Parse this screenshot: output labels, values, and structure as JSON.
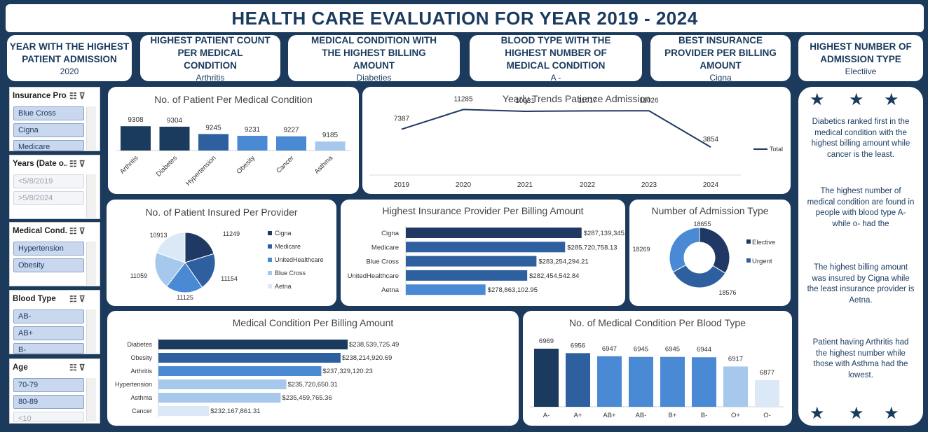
{
  "title": "HEALTH CARE EVALUATION FOR YEAR 2019 - 2024",
  "kpis": [
    {
      "heading": "YEAR WITH THE HIGHEST PATIENT ADMISSION",
      "value": "2020"
    },
    {
      "heading": "HIGHEST PATIENT COUNT PER MEDICAL CONDITION",
      "value": "Arthritis"
    },
    {
      "heading": "MEDICAL CONDITION WITH THE HIGHEST BILLING AMOUNT",
      "value": "Diabeties"
    },
    {
      "heading": "BLOOD TYPE WITH THE HIGHEST NUMBER OF MEDICAL CONDITION",
      "value": "A -"
    },
    {
      "heading": "BEST INSURANCE PROVIDER PER BILLING AMOUNT",
      "value": "Cigna"
    },
    {
      "heading": "HIGHEST NUMBER OF ADMISSION TYPE",
      "value": "Electiive"
    }
  ],
  "slicers": [
    {
      "title": "Insurance Pro...",
      "items": [
        "Blue Cross",
        "Cigna",
        "Medicare"
      ],
      "disabled": [
        false,
        false,
        false
      ]
    },
    {
      "title": "Years (Date o...",
      "items": [
        "<5/8/2019",
        ">5/8/2024"
      ],
      "disabled": [
        true,
        true
      ]
    },
    {
      "title": "Medical Cond...",
      "items": [
        "Hypertension",
        "Obesity"
      ],
      "disabled": [
        false,
        false
      ]
    },
    {
      "title": "Blood Type",
      "items": [
        "AB-",
        "AB+",
        "B-"
      ],
      "disabled": [
        false,
        false,
        false
      ]
    },
    {
      "title": "Age",
      "items": [
        "70-79",
        "80-89",
        "<10"
      ],
      "disabled": [
        false,
        false,
        true
      ]
    }
  ],
  "icons": {
    "multiselect": "multi-select-icon",
    "clear_filter": "clear-filter-icon",
    "star": "star-icon"
  },
  "colors": {
    "navy": "#1a3a5e",
    "dark_blue": "#203864",
    "mid_blue": "#2e5f9e",
    "blue": "#4a8ad4",
    "light_blue": "#a6c8ec",
    "pale_blue": "#dbe8f6",
    "background": "#1b3a5c"
  },
  "insights": [
    "Diabetics ranked first in the medical condition with the highest billing amount while cancer is the least.",
    "The highest number of medical condition are found in  people with blood type A- while o- had the",
    "The highest billing amount was insured by Cigna while the least insurance provider is Aetna.",
    "Patient having Arthritis had the highest number while those with Asthma had the lowest."
  ],
  "chart_data": [
    {
      "id": "patients_per_condition",
      "type": "bar",
      "title": "No. of Patient Per Medical Condition",
      "categories": [
        "Arthritis",
        "Diabetes",
        "Hypertension",
        "Obesity",
        "Cancer",
        "Asthma"
      ],
      "values": [
        9308,
        9304,
        9245,
        9231,
        9227,
        9185
      ],
      "value_labels": [
        "9308",
        "9304",
        "9245",
        "9231",
        "9227",
        "9185"
      ],
      "ylim": [
        9000,
        9360
      ]
    },
    {
      "id": "yearly_admission",
      "type": "line",
      "title": "Yearly Trends Patience Admission",
      "x": [
        "2019",
        "2020",
        "2021",
        "2022",
        "2023",
        "2024"
      ],
      "series": [
        {
          "name": "Total",
          "values": [
            7387,
            11285,
            10931,
            11017,
            11026,
            3854
          ]
        }
      ],
      "value_labels": [
        "7387",
        "11285",
        "10931",
        "11017",
        "11026",
        "3854"
      ],
      "legend": "right"
    },
    {
      "id": "insured_per_provider",
      "type": "pie",
      "title": "No. of Patient Insured Per Provider",
      "categories": [
        "Cigna",
        "Medicare",
        "UnitedHealthcare",
        "Blue Cross",
        "Aetna"
      ],
      "values": [
        11249,
        11154,
        11125,
        11059,
        10913
      ],
      "value_labels": [
        "11249",
        "11154",
        "11125",
        "11059",
        "10913"
      ],
      "legend": "right"
    },
    {
      "id": "billing_per_provider",
      "type": "bar",
      "orientation": "horizontal",
      "title": "Highest Insurance Provider Per Billing Amount",
      "categories": [
        "Cigna",
        "Medicare",
        "Blue Cross",
        "UnitedHealthcare",
        "Aetna"
      ],
      "values": [
        287139345.27,
        285720758.13,
        283254294.21,
        282454542.84,
        278863102.95
      ],
      "value_labels": [
        "$287,139,345.27",
        "$285,720,758.13",
        "$283,254,294.21",
        "$282,454,542.84",
        "$278,863,102.95"
      ]
    },
    {
      "id": "admission_type",
      "type": "pie",
      "subtype": "doughnut",
      "title": "Number of Admission Type",
      "categories": [
        "Elective",
        "Urgent",
        ""
      ],
      "values": [
        18655,
        18576,
        18269
      ],
      "value_labels": [
        "18655",
        "18576",
        "18269"
      ],
      "legend": "right"
    },
    {
      "id": "billing_per_condition",
      "type": "bar",
      "orientation": "horizontal",
      "title": "Medical Condition Per Billing Amount",
      "categories": [
        "Diabetes",
        "Obesity",
        "Arthritis",
        "Hypertension",
        "Asthma",
        "Cancer"
      ],
      "values": [
        238539725.49,
        238214920.69,
        237329120.23,
        235720650.31,
        235459765.36,
        232167861.31
      ],
      "value_labels": [
        "$238,539,725.49",
        "$238,214,920.69",
        "$237,329,120.23",
        "$235,720,650.31",
        "$235,459,765.36",
        "$232,167,861.31"
      ]
    },
    {
      "id": "condition_per_blood_type",
      "type": "bar",
      "title": "No. of Medical Condition Per Blood Type",
      "categories": [
        "A-",
        "A+",
        "AB+",
        "AB-",
        "B+",
        "B-",
        "O+",
        "O-"
      ],
      "values": [
        6969,
        6956,
        6947,
        6945,
        6945,
        6944,
        6917,
        6877
      ],
      "value_labels": [
        "6969",
        "6956",
        "6947",
        "6945",
        "6945",
        "6944",
        "6917",
        "6877"
      ],
      "ylim": [
        6800,
        6980
      ]
    }
  ]
}
